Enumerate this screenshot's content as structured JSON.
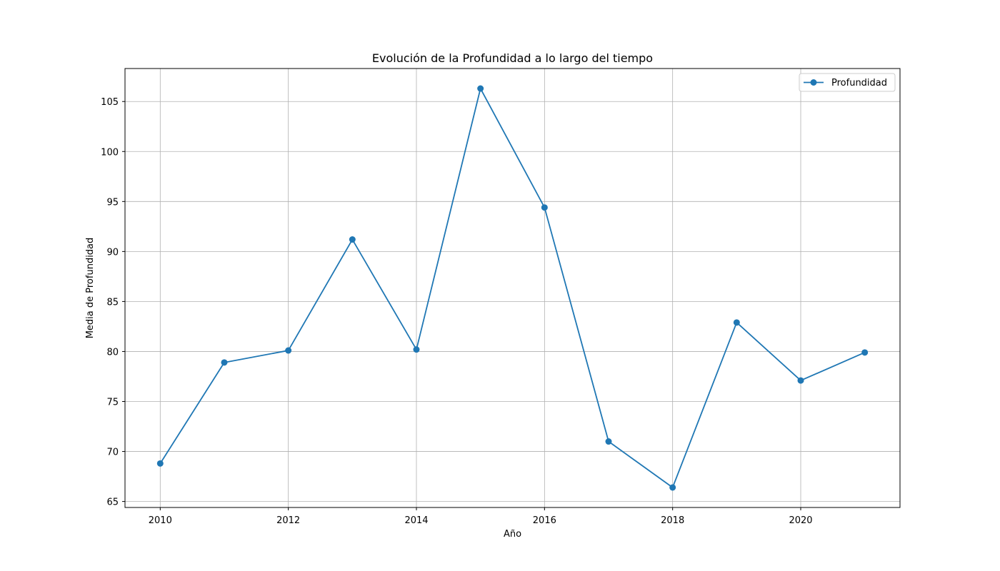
{
  "chart_data": {
    "type": "line",
    "title": "Evolución de la Profundidad a lo largo del tiempo",
    "xlabel": "Año",
    "ylabel": "Media de Profundidad",
    "x": [
      2010,
      2011,
      2012,
      2013,
      2014,
      2015,
      2016,
      2017,
      2018,
      2019,
      2020,
      2021
    ],
    "series": [
      {
        "name": "Profundidad",
        "values": [
          68.8,
          78.9,
          80.1,
          91.2,
          80.2,
          106.3,
          94.4,
          71.0,
          66.4,
          82.9,
          77.1,
          79.9
        ],
        "color": "#1f77b4",
        "marker": "circle"
      }
    ],
    "xlim": [
      2009.45,
      2021.55
    ],
    "ylim": [
      64.4,
      108.3
    ],
    "x_ticks": [
      2010,
      2012,
      2014,
      2016,
      2018,
      2020
    ],
    "x_tick_labels": [
      "2010",
      "2012",
      "2014",
      "2016",
      "2018",
      "2020"
    ],
    "y_ticks": [
      65,
      70,
      75,
      80,
      85,
      90,
      95,
      100,
      105
    ],
    "y_tick_labels": [
      "65",
      "70",
      "75",
      "80",
      "85",
      "90",
      "95",
      "100",
      "105"
    ],
    "grid": true,
    "legend_position": "top-right"
  }
}
